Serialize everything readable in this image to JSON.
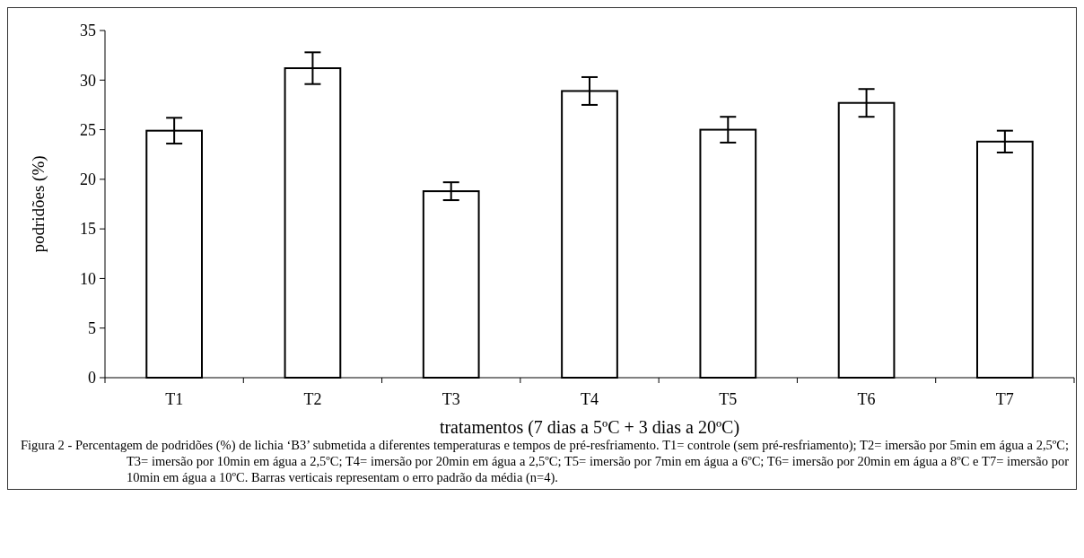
{
  "chart_data": {
    "type": "bar",
    "xlabel": "tratamentos (7 dias a 5ºC + 3 dias a 20ºC)",
    "ylabel": "podridões (%)",
    "categories": [
      "T1",
      "T2",
      "T3",
      "T4",
      "T5",
      "T6",
      "T7"
    ],
    "values": [
      24.9,
      31.2,
      18.8,
      28.9,
      25.0,
      27.7,
      23.8
    ],
    "errors": [
      1.3,
      1.6,
      0.9,
      1.4,
      1.3,
      1.4,
      1.1
    ],
    "color": "#ffffff",
    "ylim": [
      0,
      35
    ],
    "yticks": [
      0,
      5,
      10,
      15,
      20,
      25,
      30,
      35
    ],
    "annotations": [
      "Figura 2 - Percentagem de podridões (%) de lichia ‘B3’ submetida a diferentes temperaturas e tempos de pré-resfriamento. T1= controle (sem pré-resfriamento); T2= imersão por 5min em água a 2,5ºC; T3= imersão por 10min em água a 2,5ºC; T4= imersão por 20min em água a 2,5ºC; T5= imersão por 7min em água a 6ºC; T6= imersão por 20min em água a 8ºC e T7= imersão por 10min em água a 10ºC. Barras verticais representam o erro padrão da média (n=4)."
    ]
  }
}
